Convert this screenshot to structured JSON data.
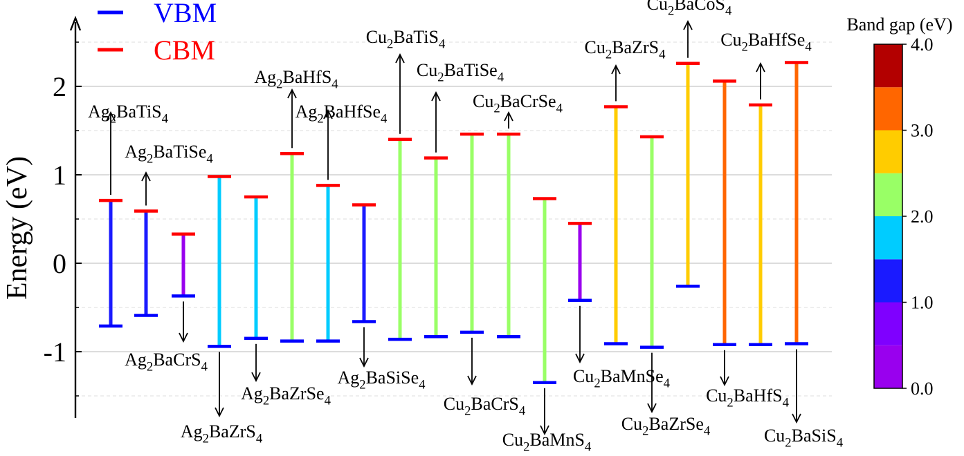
{
  "chart_data": {
    "type": "band-edge",
    "ylabel": "Energy (eV)",
    "ylim": [
      -1.75,
      2.75
    ],
    "yticks": [
      -1,
      0,
      1,
      2
    ],
    "ytick_labels": [
      "-1",
      "0",
      "1",
      "2"
    ],
    "grid": true,
    "legend": {
      "placement": "top-left",
      "entries": [
        {
          "label": "VBM",
          "color": "#0000ff"
        },
        {
          "label": "CBM",
          "color": "#ff0000"
        }
      ]
    },
    "colorbar": {
      "title": "Band gap (eV)",
      "range": [
        0,
        4
      ],
      "tick_labels": [
        "0.0",
        "1.0",
        "2.0",
        "3.0",
        "4.0"
      ],
      "bins": [
        "#9900ee",
        "#7f00ff",
        "#1a1aff",
        "#00ccff",
        "#99ff66",
        "#ffcc00",
        "#ff6600",
        "#b30000"
      ]
    },
    "series": [
      {
        "compound": "Ag₂BaTiS₄",
        "vbm": -0.71,
        "cbm": 0.71,
        "color": "#1a1aff",
        "label_at": "cbm"
      },
      {
        "compound": "Ag₂BaTiSe₄",
        "vbm": -0.59,
        "cbm": 0.59,
        "color": "#1a1aff",
        "label_at": "cbm"
      },
      {
        "compound": "Ag₂BaCrS₄",
        "vbm": -0.37,
        "cbm": 0.33,
        "color": "#9900ee",
        "label_at": "vbm"
      },
      {
        "compound": "Ag₂BaZrS₄",
        "vbm": -0.94,
        "cbm": 0.98,
        "color": "#00ccff",
        "label_at": "vbm"
      },
      {
        "compound": "Ag₂BaZrSe₄",
        "vbm": -0.85,
        "cbm": 0.75,
        "color": "#00ccff",
        "label_at": "vbm"
      },
      {
        "compound": "Ag₂BaHfS₄",
        "vbm": -0.88,
        "cbm": 1.24,
        "color": "#99ff66",
        "label_at": "cbm"
      },
      {
        "compound": "Ag₂BaHfSe₄",
        "vbm": -0.88,
        "cbm": 0.88,
        "color": "#00ccff",
        "label_at": "cbm"
      },
      {
        "compound": "Ag₂BaSiSe₄",
        "vbm": -0.66,
        "cbm": 0.66,
        "color": "#1a1aff",
        "label_at": "vbm"
      },
      {
        "compound": "Cu₂BaTiS₄",
        "vbm": -0.86,
        "cbm": 1.4,
        "color": "#99ff66",
        "label_at": "cbm"
      },
      {
        "compound": "Cu₂BaTiSe₄",
        "vbm": -0.83,
        "cbm": 1.19,
        "color": "#99ff66",
        "label_at": "cbm"
      },
      {
        "compound": "Cu₂BaCrS₄",
        "vbm": -0.78,
        "cbm": 1.46,
        "color": "#99ff66",
        "label_at": "vbm"
      },
      {
        "compound": "Cu₂BaCrSe₄",
        "vbm": -0.83,
        "cbm": 1.46,
        "color": "#99ff66",
        "label_at": "cbm"
      },
      {
        "compound": "Cu₂BaMnS₄",
        "vbm": -1.35,
        "cbm": 0.73,
        "color": "#99ff66",
        "label_at": "vbm"
      },
      {
        "compound": "Cu₂BaMnSe₄",
        "vbm": -0.42,
        "cbm": 0.45,
        "color": "#9900ee",
        "label_at": "vbm"
      },
      {
        "compound": "Cu₂BaZrS₄",
        "vbm": -0.91,
        "cbm": 1.77,
        "color": "#ffcc00",
        "label_at": "cbm"
      },
      {
        "compound": "Cu₂BaZrSe₄",
        "vbm": -0.95,
        "cbm": 1.43,
        "color": "#99ff66",
        "label_at": "vbm"
      },
      {
        "compound": "Cu₂BaCoS₄",
        "vbm": -0.26,
        "cbm": 2.26,
        "color": "#ffcc00",
        "label_at": "cbm"
      },
      {
        "compound": "Cu₂BaHfS₄",
        "vbm": -0.92,
        "cbm": 2.06,
        "color": "#ff6600",
        "label_at": "vbm"
      },
      {
        "compound": "Cu₂BaHfSe₄",
        "vbm": -0.92,
        "cbm": 1.79,
        "color": "#ffcc00",
        "label_at": "cbm"
      },
      {
        "compound": "Cu₂BaSiS₄",
        "vbm": -0.91,
        "cbm": 2.27,
        "color": "#ff6600",
        "label_at": "vbm"
      }
    ]
  }
}
